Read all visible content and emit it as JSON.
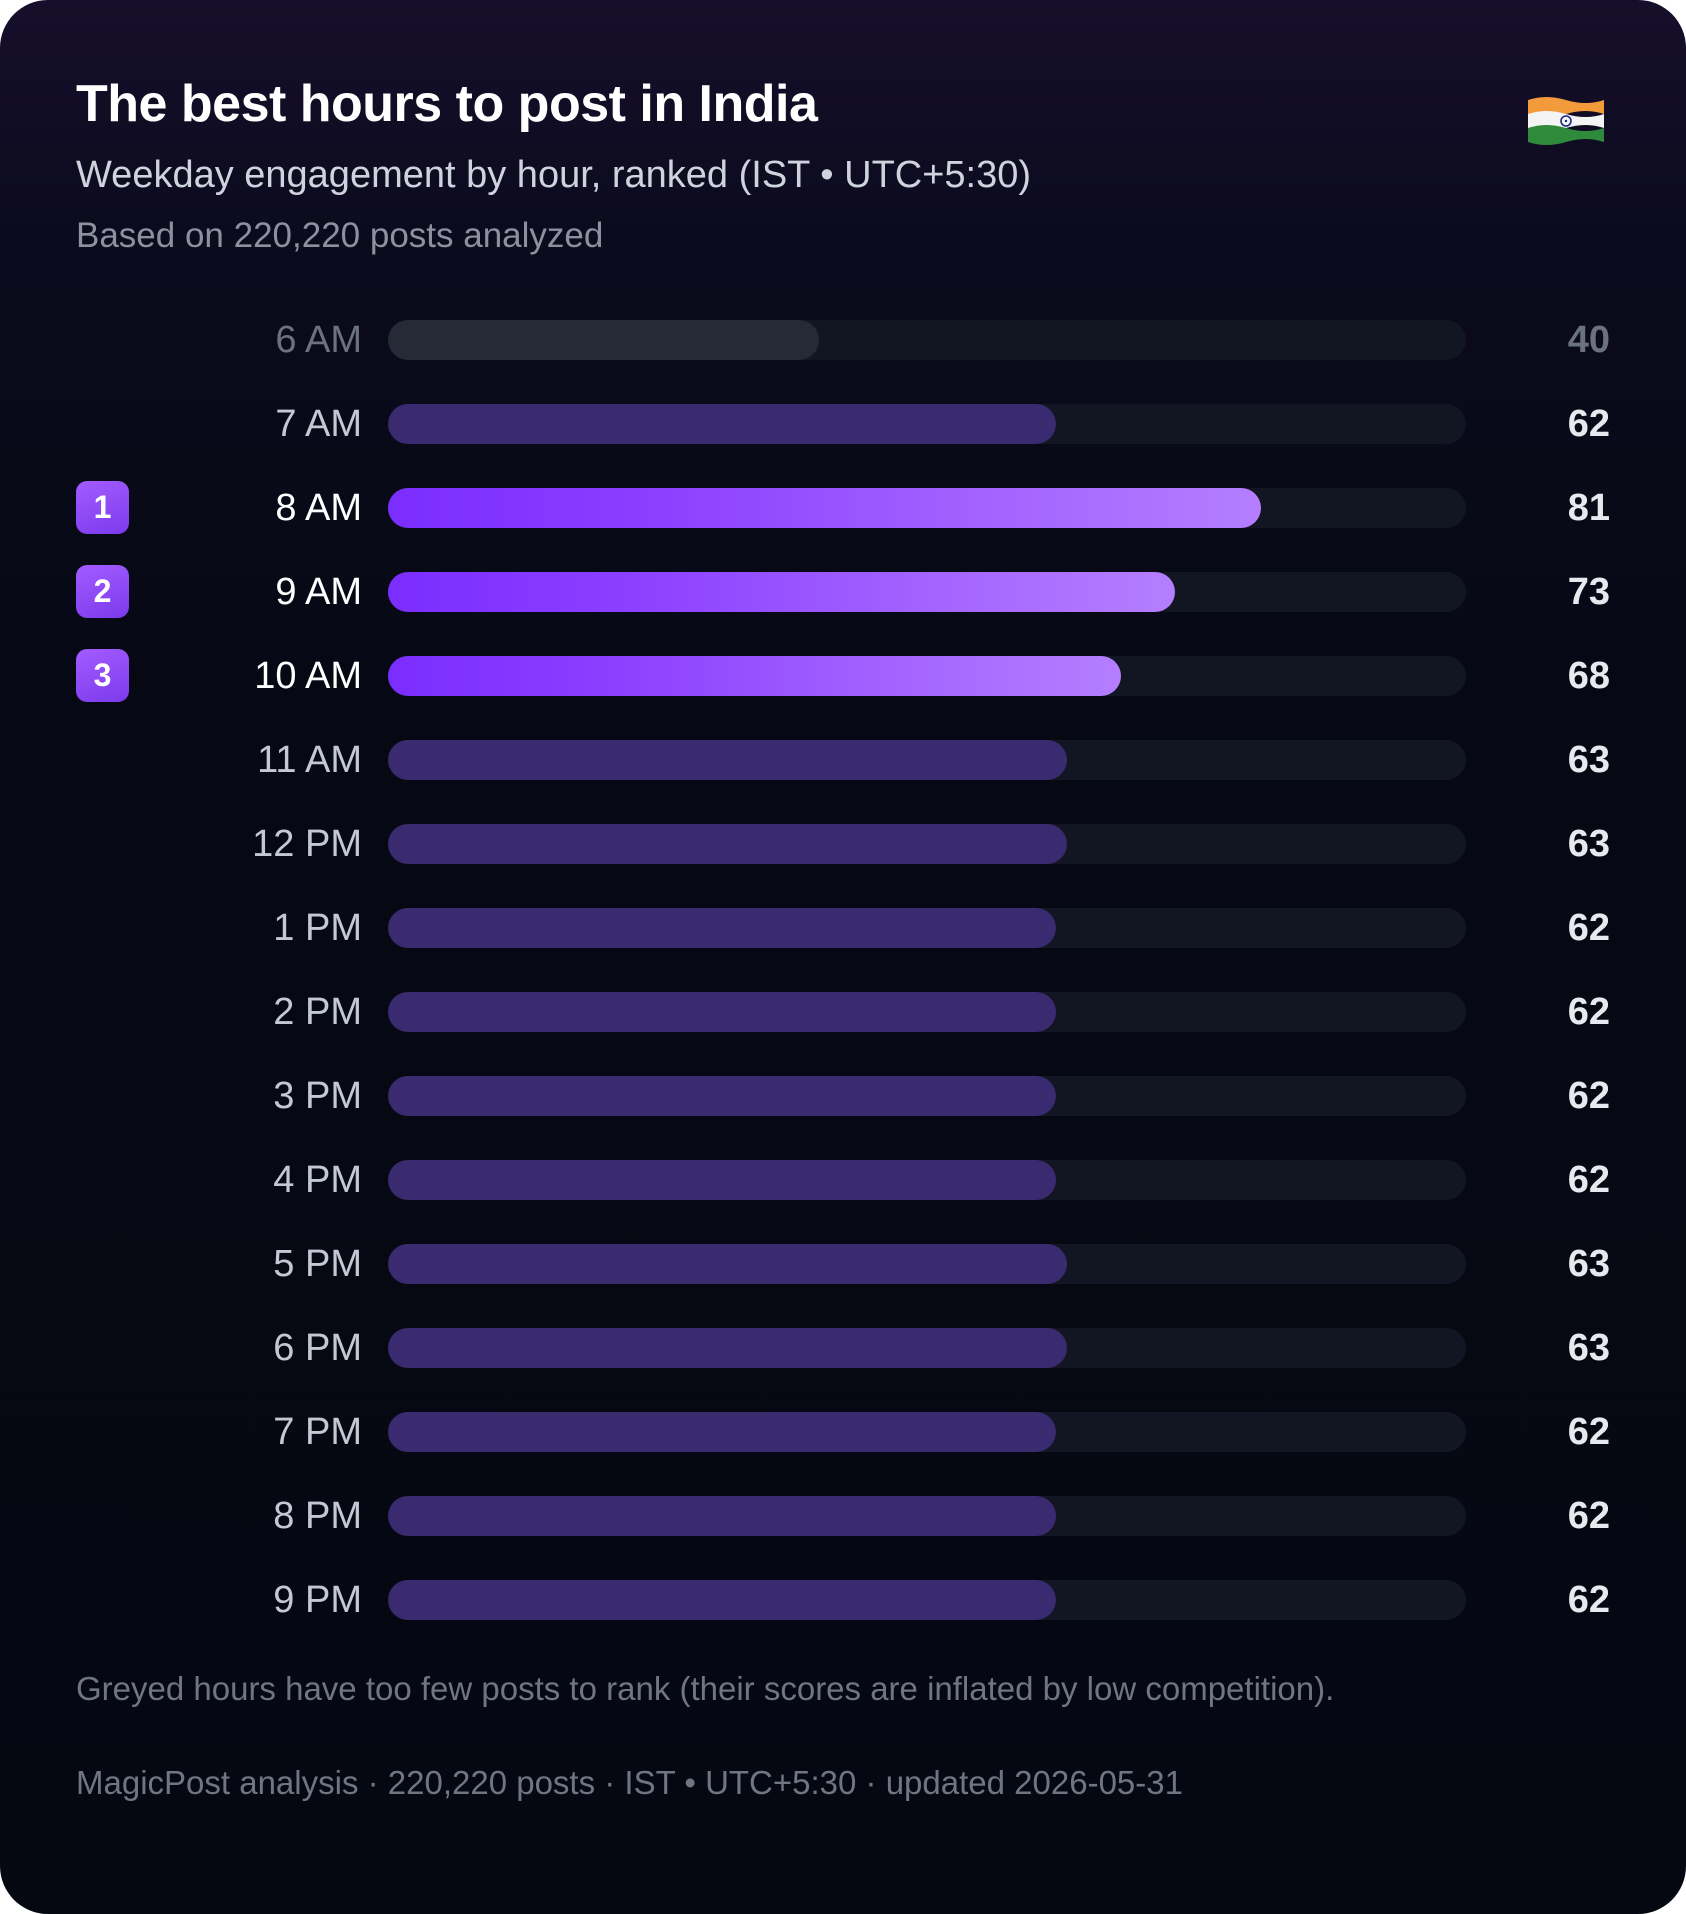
{
  "header": {
    "title": "The best hours to post in India",
    "subtitle": "Weekday engagement by hour, ranked (IST • UTC+5:30)",
    "sample": "Based on 220,220 posts analyzed",
    "flag_icon": "india-flag-icon"
  },
  "colors": {
    "top_fill_start": "#7a2dff",
    "top_fill_end": "#b57eff",
    "regular_fill": "#3a2a70",
    "greyed_fill": "#262a36",
    "track": "#121623",
    "badge": "#8b3dff"
  },
  "chart_data": {
    "type": "bar",
    "orientation": "horizontal",
    "title": "The best hours to post in India",
    "subtitle": "Weekday engagement by hour, ranked (IST • UTC+5:30)",
    "xlim": [
      0,
      100
    ],
    "grid": false,
    "legend": "none",
    "categories": [
      "6 AM",
      "7 AM",
      "8 AM",
      "9 AM",
      "10 AM",
      "11 AM",
      "12 PM",
      "1 PM",
      "2 PM",
      "3 PM",
      "4 PM",
      "5 PM",
      "6 PM",
      "7 PM",
      "8 PM",
      "9 PM"
    ],
    "values": [
      40,
      62,
      81,
      73,
      68,
      63,
      63,
      62,
      62,
      62,
      62,
      63,
      63,
      62,
      62,
      62
    ],
    "ranks": [
      "",
      "",
      "1",
      "2",
      "3",
      "",
      "",
      "",
      "",
      "",
      "",
      "",
      "",
      "",
      "",
      ""
    ],
    "greyed": [
      true,
      false,
      false,
      false,
      false,
      false,
      false,
      false,
      false,
      false,
      false,
      false,
      false,
      false,
      false,
      false
    ]
  },
  "footer": {
    "note": "Greyed hours have too few posts to rank (their scores are inflated by low competition).",
    "credit": "MagicPost analysis · 220,220 posts · IST • UTC+5:30 · updated 2026-05-31"
  }
}
